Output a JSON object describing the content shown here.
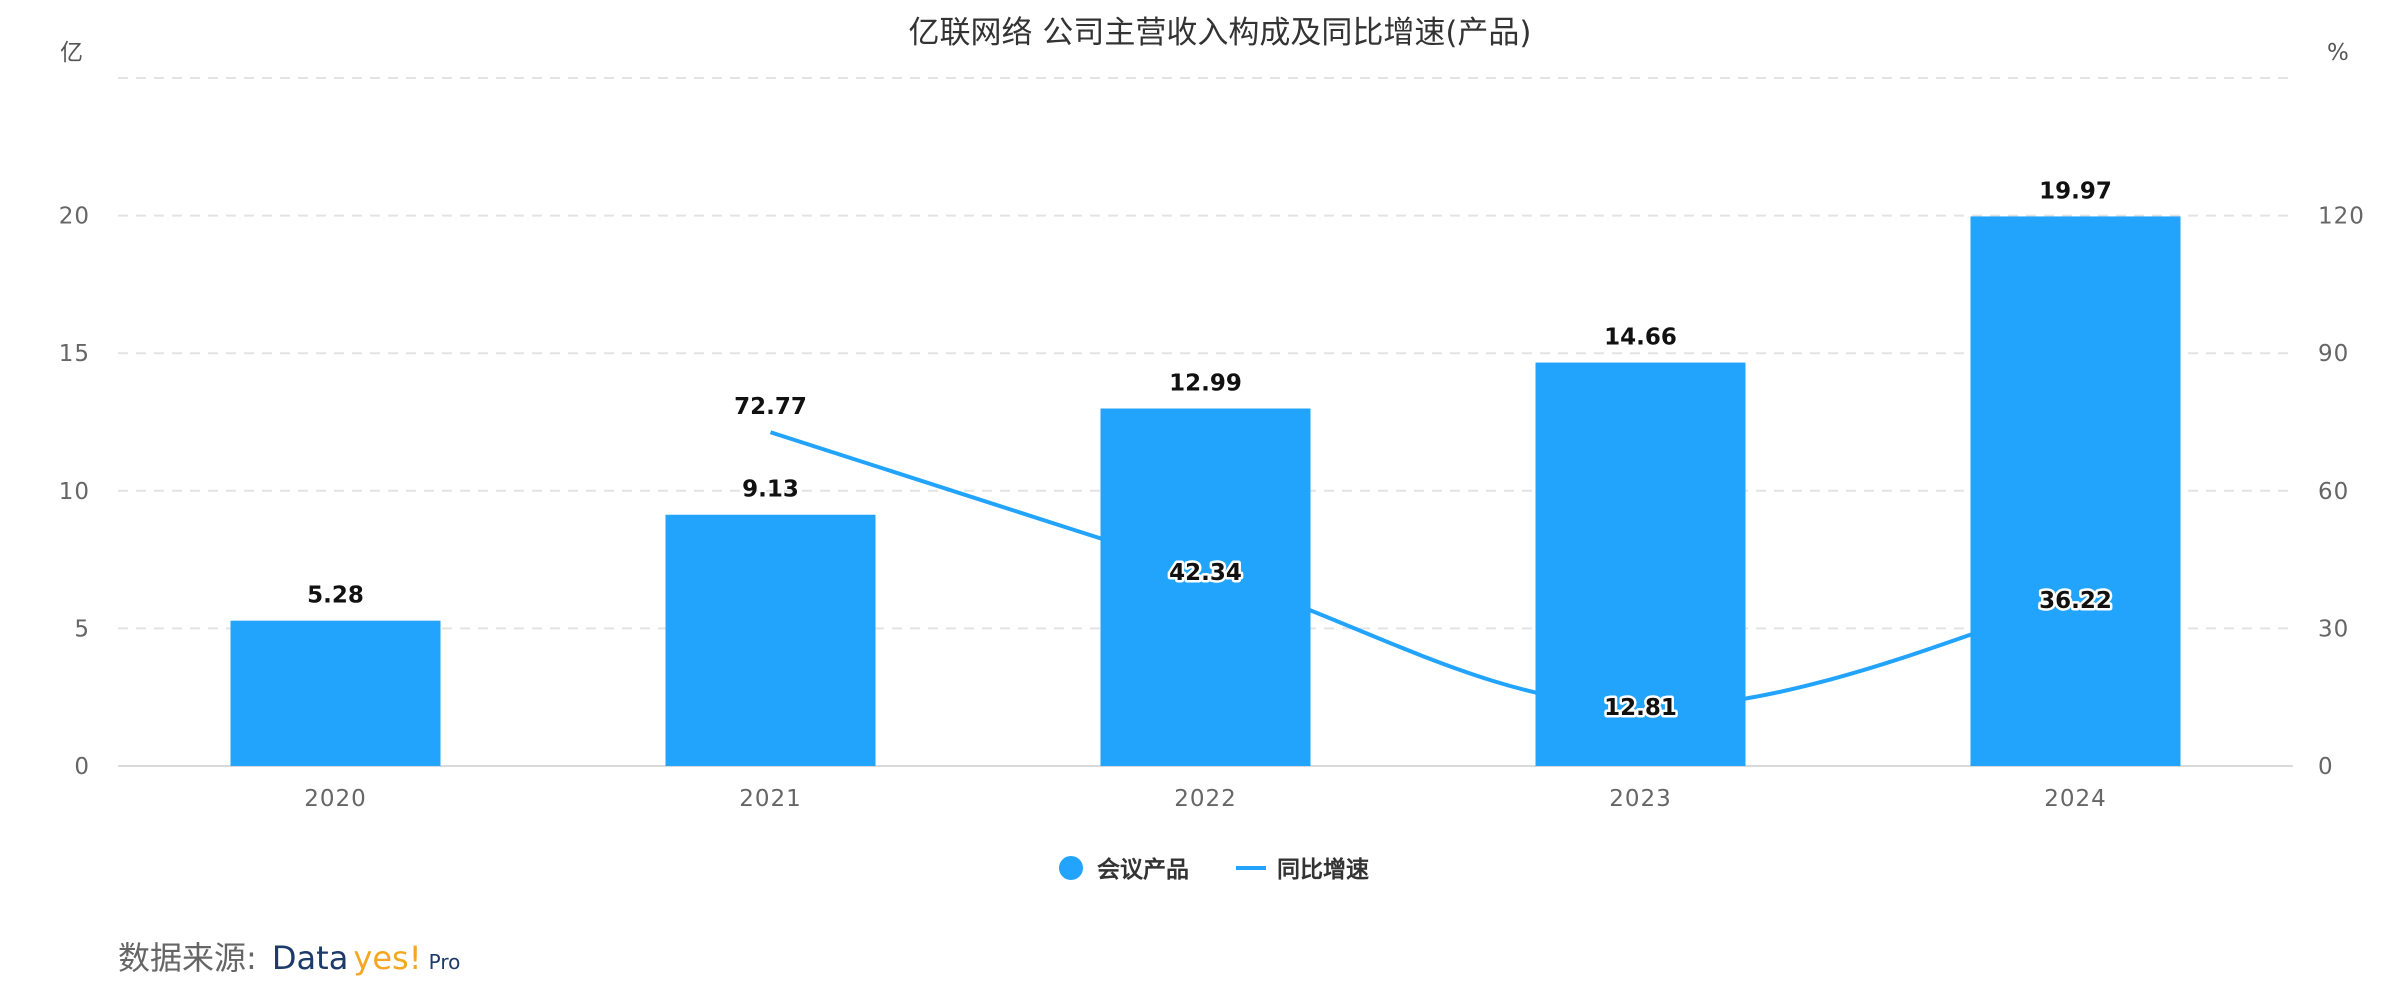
{
  "chart_data": {
    "type": "bar",
    "title": "亿联网络 公司主营收入构成及同比增速(产品)",
    "left_unit": "亿",
    "right_unit": "%",
    "categories": [
      "2020",
      "2021",
      "2022",
      "2023",
      "2024"
    ],
    "series": [
      {
        "name": "会议产品",
        "kind": "bar",
        "axis": "left",
        "color": "#22a4fd",
        "values": [
          5.28,
          9.13,
          12.99,
          14.66,
          19.97
        ],
        "labels": [
          "5.28",
          "9.13",
          "12.99",
          "14.66",
          "19.97"
        ]
      },
      {
        "name": "同比增速",
        "kind": "line",
        "axis": "right",
        "color": "#22a4fd",
        "values": [
          null,
          72.77,
          42.34,
          12.81,
          36.22
        ],
        "labels": [
          "",
          "72.77",
          "42.34",
          "12.81",
          "36.22"
        ]
      }
    ],
    "y_left": {
      "min": 0,
      "max": 25,
      "ticks": [
        0,
        5,
        10,
        15,
        20
      ]
    },
    "y_right": {
      "min": 0,
      "max": 150,
      "ticks": [
        0,
        30,
        60,
        90,
        120
      ]
    },
    "grid": true,
    "legend_position": "bottom-center"
  },
  "source": {
    "prefix": "数据来源:",
    "brand_part1": "Data",
    "brand_part2": "yes!",
    "brand_part3": "Pro"
  },
  "colors": {
    "bar": "#22a4fd",
    "line": "#22a4fd",
    "grid": "#e3e3e3",
    "axis": "#d9d9d9"
  }
}
